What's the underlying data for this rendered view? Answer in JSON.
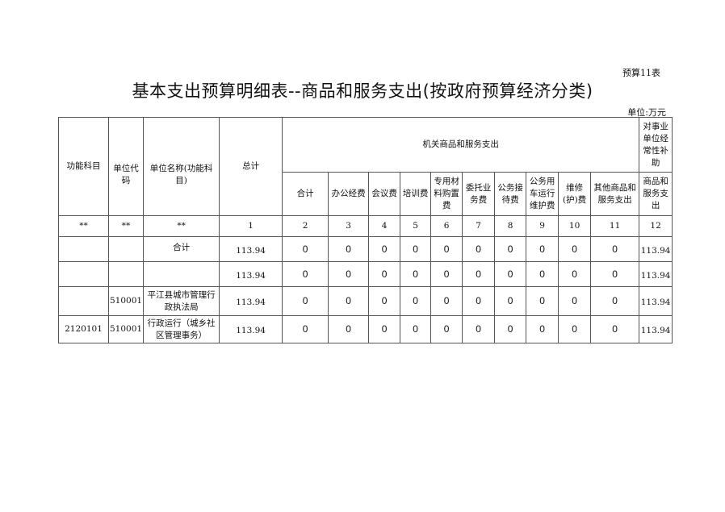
{
  "table_number": "预算11表",
  "title": "基本支出预算明细表--商品和服务支出(按政府预算经济分类)",
  "unit": "单位:万元",
  "headers": {
    "func_subject": "功能科目",
    "unit_code": "单位代码",
    "unit_name": "单位名称(功能科目)",
    "total": "总计",
    "group_org": "机关商品和服务支出",
    "group_subsidy": "对事业单位经常性补助",
    "sub_columns": [
      "合计",
      "办公经费",
      "会议费",
      "培训费",
      "专用材料购置费",
      "委托业务费",
      "公务接待费",
      "公务用车运行维护费",
      "维修(护)费",
      "其他商品和服务支出"
    ],
    "subsidy_sub": "商品和服务支出"
  },
  "index_row": [
    "**",
    "**",
    "**",
    "1",
    "2",
    "3",
    "4",
    "5",
    "6",
    "7",
    "8",
    "9",
    "10",
    "11",
    "12"
  ],
  "rows": [
    {
      "func": "",
      "code": "",
      "name": "合计",
      "total": "113.94",
      "values": [
        "0",
        "0",
        "0",
        "0",
        "0",
        "0",
        "0",
        "0",
        "0",
        "0"
      ],
      "subsidy": "113.94"
    },
    {
      "func": "",
      "code": "",
      "name": "",
      "total": "113.94",
      "values": [
        "0",
        "0",
        "0",
        "0",
        "0",
        "0",
        "0",
        "0",
        "0",
        "0"
      ],
      "subsidy": "113.94"
    },
    {
      "func": "",
      "code": "510001",
      "name": "平江县城市管理行政执法局",
      "total": "113.94",
      "values": [
        "0",
        "0",
        "0",
        "0",
        "0",
        "0",
        "0",
        "0",
        "0",
        "0"
      ],
      "subsidy": "113.94"
    },
    {
      "func": "2120101",
      "code": "510001",
      "name": "行政运行（城乡社区管理事务）",
      "total": "113.94",
      "values": [
        "0",
        "0",
        "0",
        "0",
        "0",
        "0",
        "0",
        "0",
        "0",
        "0"
      ],
      "subsidy": "113.94"
    }
  ]
}
